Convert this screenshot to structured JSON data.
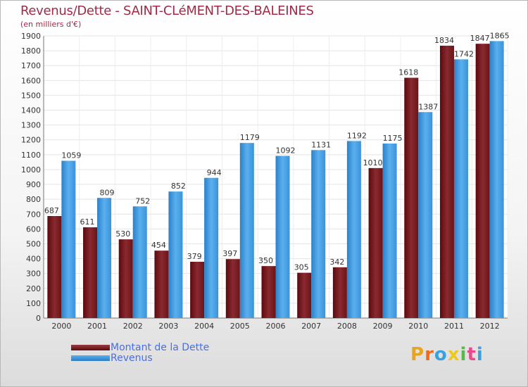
{
  "header": {
    "title": "Revenus/Dette - SAINT-CLéMENT-DES-BALEINES",
    "subtitle": "(en milliers d'€)"
  },
  "chart_data": {
    "type": "bar",
    "title": "Revenus/Dette - SAINT-CLéMENT-DES-BALEINES",
    "subtitle": "(en milliers d'€)",
    "categories": [
      "2000",
      "2001",
      "2002",
      "2003",
      "2004",
      "2005",
      "2006",
      "2007",
      "2008",
      "2009",
      "2010",
      "2011",
      "2012"
    ],
    "series": [
      {
        "name": "Montant de la Dette",
        "color": "#7a1f24",
        "values": [
          687,
          611,
          530,
          454,
          379,
          397,
          350,
          305,
          342,
          1010,
          1618,
          1834,
          1847
        ]
      },
      {
        "name": "Revenus",
        "color": "#3f96dc",
        "values": [
          1059,
          809,
          752,
          852,
          944,
          1179,
          1092,
          1131,
          1192,
          1175,
          1387,
          1742,
          1865
        ]
      }
    ],
    "value_labels": [
      [
        "687",
        "611",
        "530",
        "454",
        "379",
        "397",
        "350",
        "305",
        "342",
        "1010",
        "1618",
        "1834",
        "1847"
      ],
      [
        "1059",
        "809",
        "752",
        "852",
        "944",
        "1179",
        "1092",
        "1131",
        "1192",
        "1175",
        "1387",
        "1742",
        "1865"
      ]
    ],
    "ylim": [
      0,
      1900
    ],
    "yticks": [
      "0",
      "100",
      "200",
      "300",
      "400",
      "500",
      "600",
      "700",
      "800",
      "900",
      "1000",
      "1100",
      "1200",
      "1300",
      "1400",
      "1500",
      "1600",
      "1700",
      "1800",
      "1900"
    ],
    "grid": true,
    "legend_position": "bottom-left"
  },
  "legend": {
    "items": [
      {
        "label": "Montant de la Dette",
        "color": "#7a1f24"
      },
      {
        "label": "Revenus",
        "color": "#3f96dc"
      }
    ]
  },
  "logo": {
    "text": "Proxiti",
    "letters": [
      "P",
      "r",
      "o",
      "x",
      "i",
      "t",
      "i"
    ],
    "colors": [
      "#e8a41c",
      "#f06a1a",
      "#3aa0e0",
      "#f0c81a",
      "#58b84a",
      "#e84a8a",
      "#3aa0e0"
    ]
  }
}
